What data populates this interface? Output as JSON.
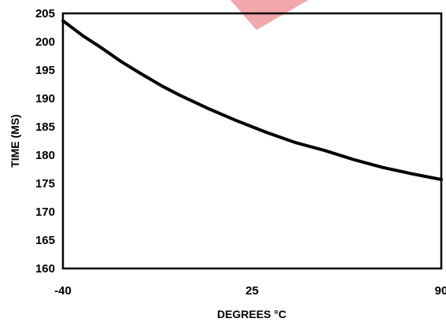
{
  "chart_data": {
    "type": "line",
    "xlabel": "DEGREES °C",
    "ylabel": "TIME (MS)",
    "xlim": [
      -40,
      90
    ],
    "ylim": [
      160,
      205
    ],
    "x_ticks": [
      -40,
      25,
      90
    ],
    "x_tick_labels": [
      "-40",
      "25",
      "90"
    ],
    "y_ticks": [
      160,
      165,
      170,
      175,
      180,
      185,
      190,
      195,
      200,
      205
    ],
    "y_tick_labels": [
      "160",
      "165",
      "170",
      "175",
      "180",
      "185",
      "190",
      "195",
      "200",
      "205"
    ],
    "grid": false,
    "legend": "none",
    "series": [
      {
        "x": [
          -40,
          -33,
          -27,
          -20,
          -13,
          -6,
          0,
          10,
          20,
          30,
          40,
          50,
          60,
          70,
          80,
          90
        ],
        "y": [
          203.7,
          201,
          199,
          196.5,
          194.3,
          192.2,
          190.6,
          188.2,
          186,
          184,
          182.2,
          180.8,
          179.2,
          177.8,
          176.7,
          175.7
        ],
        "color": "#000000"
      }
    ]
  },
  "colors": {
    "line": "#000000",
    "axis": "#000000",
    "watermark": "#ee8a8f"
  }
}
